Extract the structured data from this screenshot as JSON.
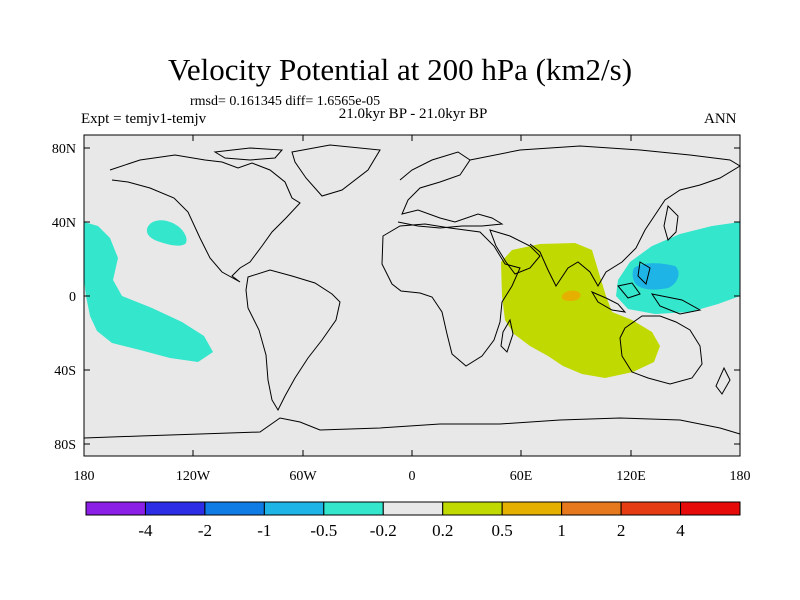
{
  "title": "Velocity Potential at 200 hPa (km2/s)",
  "stats": "rmsd= 0.161345 diff= 1.6565e-05",
  "period": "21.0kyr BP - 21.0kyr BP",
  "experiment": "Expt = temjv1-temjv",
  "season": "ANN",
  "map": {
    "background_color": "#e8e8e8",
    "lat_labels": [
      "80N",
      "40N",
      "0",
      "40S",
      "80S"
    ],
    "lon_labels": [
      "180",
      "120W",
      "60W",
      "0",
      "60E",
      "120E",
      "180"
    ],
    "regions": [
      {
        "name": "central-pacific-negative",
        "level": "-0.5 to -0.2",
        "color": "#33e6cc"
      },
      {
        "name": "north-pacific-negative",
        "level": "-0.5 to -0.2",
        "color": "#33e6cc"
      },
      {
        "name": "west-pacific-negative",
        "level": "-0.5 to -0.2",
        "color": "#33e6cc"
      },
      {
        "name": "philippine-sea-minimum",
        "level": "-1 to -0.5",
        "color": "#1eb4e6"
      },
      {
        "name": "indian-ocean-positive",
        "level": "0.2 to 0.5",
        "color": "#c0d900"
      },
      {
        "name": "indian-ocean-maximum",
        "level": "0.5 to 1",
        "color": "#e6b000"
      }
    ]
  },
  "colorbar": {
    "colors": [
      "#8c1fe6",
      "#2d2de6",
      "#0f7ce6",
      "#1eb4e6",
      "#33e6cc",
      "#e8e8e8",
      "#c0d900",
      "#e6b000",
      "#e6781e",
      "#e63c14",
      "#e60a0a"
    ],
    "labels": [
      "-4",
      "-2",
      "-1",
      "-0.5",
      "-0.2",
      "0.2",
      "0.5",
      "1",
      "2",
      "4"
    ]
  }
}
